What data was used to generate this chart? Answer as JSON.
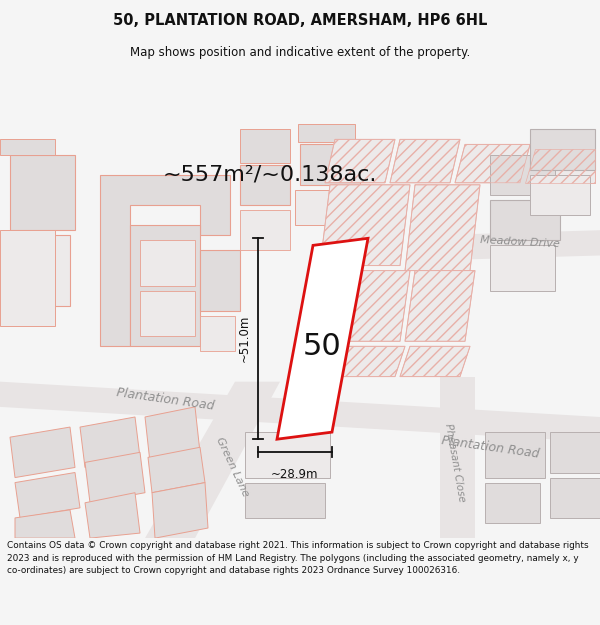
{
  "title_line1": "50, PLANTATION ROAD, AMERSHAM, HP6 6HL",
  "title_line2": "Map shows position and indicative extent of the property.",
  "area_label": "~557m²/~0.138ac.",
  "property_number": "50",
  "dim_height": "~51.0m",
  "dim_width": "~28.9m",
  "footer_text": "Contains OS data © Crown copyright and database right 2021. This information is subject to Crown copyright and database rights 2023 and is reproduced with the permission of HM Land Registry. The polygons (including the associated geometry, namely x, y co-ordinates) are subject to Crown copyright and database rights 2023 Ordnance Survey 100026316.",
  "bg_color": "#f5f5f5",
  "map_bg": "#f2f0f0",
  "road_fill": "#e8e4e4",
  "road_fill2": "#dedad8",
  "building_fill": "#e0dcdc",
  "building_fill_light": "#edeaea",
  "building_stroke_red": "#e8a090",
  "building_stroke_grey": "#b8b0b0",
  "red_stroke": "#dd1111",
  "highlight_fill": "#ffffff",
  "road_label_color": "#909090",
  "title_color": "#111111",
  "dim_color": "#111111",
  "footer_color": "#111111",
  "separator_color": "#cccccc",
  "hatch_color": "#e8b0a8"
}
